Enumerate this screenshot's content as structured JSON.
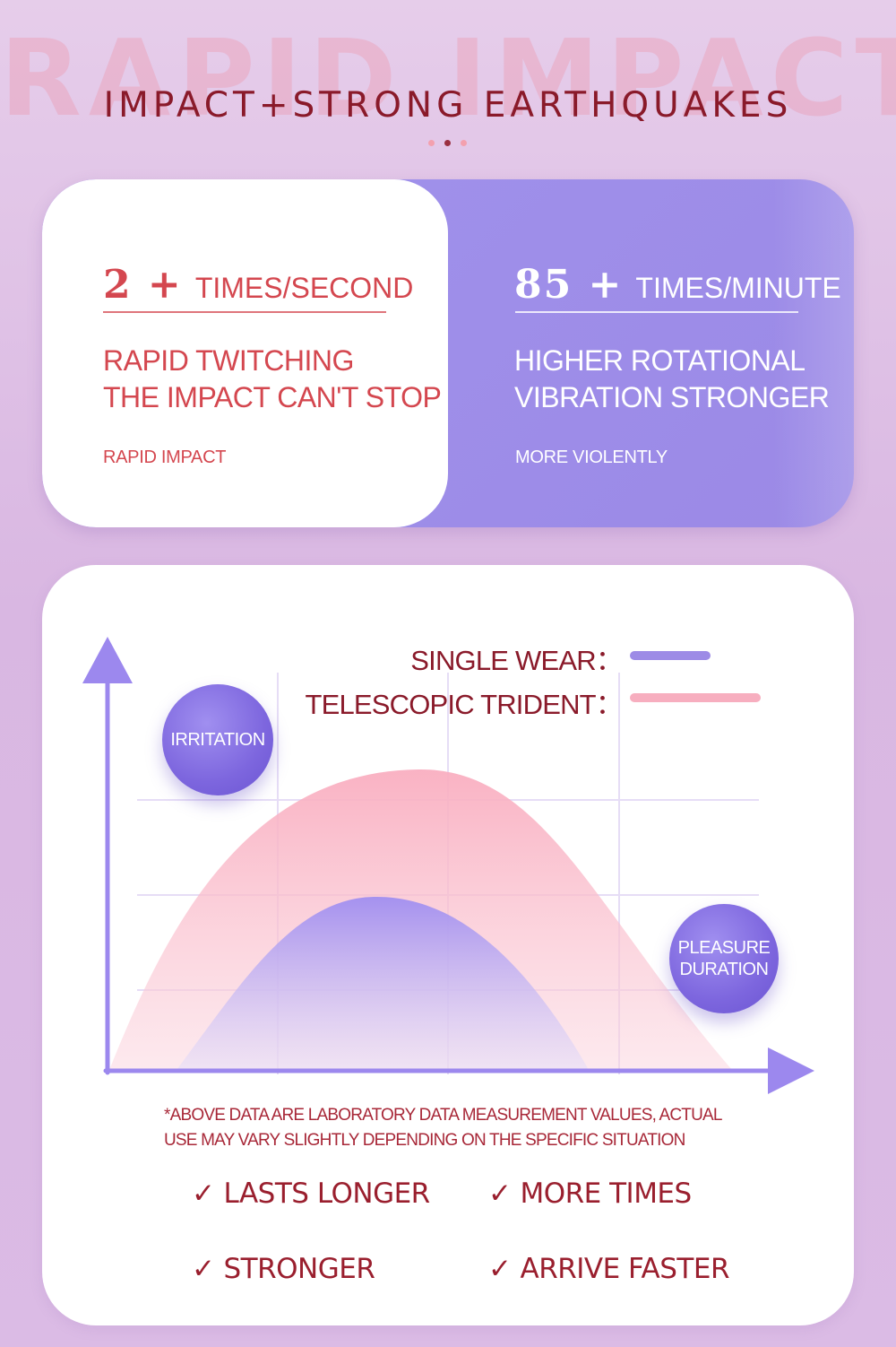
{
  "header": {
    "background_text": "RAPID IMPACT",
    "title": "IMPACT+STRONG EARTHQUAKES"
  },
  "stats": {
    "left": {
      "number": "2 +",
      "unit": "TIMES/SECOND",
      "description_line1": "RAPID TWITCHING",
      "description_line2": "THE IMPACT CAN'T STOP",
      "caption": "RAPID IMPACT"
    },
    "right": {
      "number": "85 +",
      "unit": "TIMES/MINUTE",
      "description_line1": "HIGHER ROTATIONAL",
      "description_line2": "VIBRATION STRONGER",
      "caption": "MORE VIOLENTLY"
    }
  },
  "chart": {
    "legend": [
      {
        "label": "SINGLE WEAR：",
        "color": "#9d8be6"
      },
      {
        "label": "TELESCOPIC TRIDENT：",
        "color": "#f7aebf"
      }
    ],
    "y_bubble": "IRRITATION",
    "x_bubble": "PLEASURE\nDURATION",
    "colors": {
      "axis": "#9c88ee",
      "grid": "#e6ddf6"
    }
  },
  "chart_data": {
    "type": "area",
    "title": "",
    "xlabel": "PLEASURE DURATION",
    "ylabel": "IRRITATION",
    "series": [
      {
        "name": "SINGLE WEAR",
        "color": "#9d8be6",
        "peak_relative": 0.68
      },
      {
        "name": "TELESCOPIC TRIDENT",
        "color": "#f7aebf",
        "peak_relative": 1.0
      }
    ],
    "grid": true
  },
  "disclaimer": "*ABOVE DATA ARE LABORATORY DATA MEASUREMENT VALUES, ACTUAL\nUSE MAY VARY SLIGHTLY DEPENDING ON THE SPECIFIC SITUATION",
  "features": {
    "check_glyph": "✓",
    "items": [
      "LASTS LONGER",
      "MORE TIMES",
      "STRONGER",
      "ARRIVE FASTER"
    ]
  }
}
